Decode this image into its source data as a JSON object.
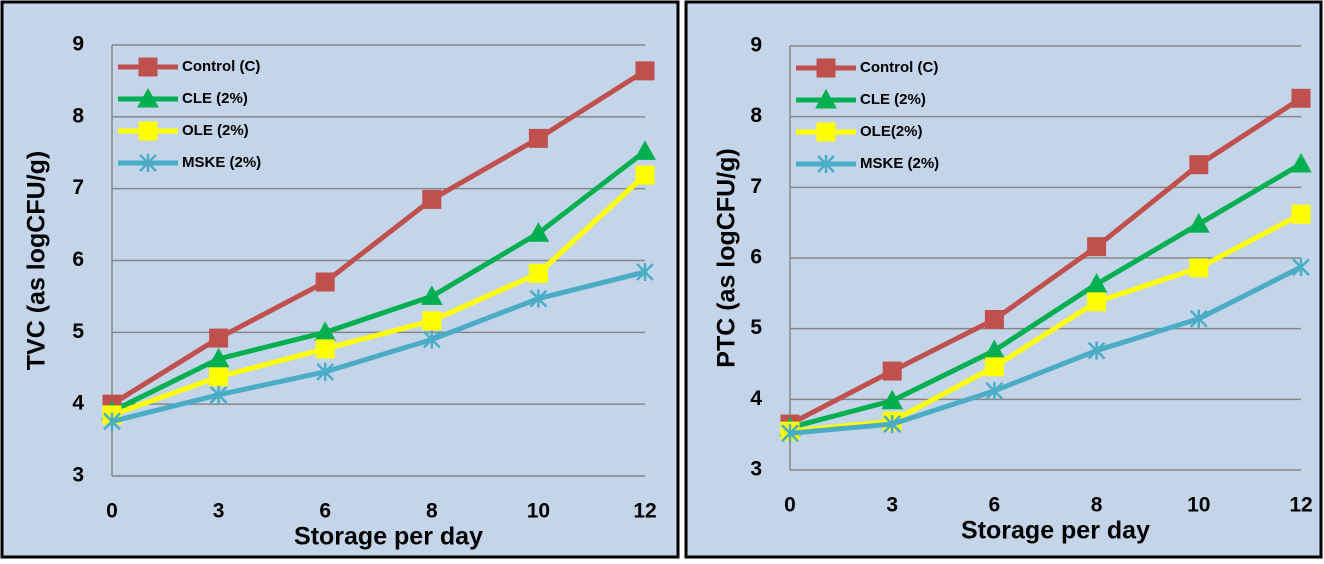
{
  "chart_data": [
    {
      "type": "line",
      "x_label": "Storage per day",
      "y_label": "TVC (as logCFU/g)",
      "categories": [
        "0",
        "3",
        "6",
        "8",
        "10",
        "12"
      ],
      "ylim": [
        3,
        9
      ],
      "yticks": [
        3,
        4,
        5,
        6,
        7,
        8,
        9
      ],
      "grid": true,
      "legend": "upper left",
      "series": [
        {
          "name": "Control (C)",
          "color": "#c0504d",
          "marker": "square",
          "values": [
            4.0,
            4.92,
            5.7,
            6.85,
            7.7,
            8.64
          ]
        },
        {
          "name": "CLE (2%)",
          "color": "#00b050",
          "marker": "triangle",
          "values": [
            3.9,
            4.63,
            5.0,
            5.5,
            6.38,
            7.52
          ]
        },
        {
          "name": "OLE (2%)",
          "color": "#ffff00",
          "marker": "square",
          "values": [
            3.85,
            4.38,
            4.77,
            5.16,
            5.82,
            7.19
          ]
        },
        {
          "name": "MSKE (2%)",
          "color": "#4bacc6",
          "marker": "star",
          "values": [
            3.76,
            4.13,
            4.45,
            4.9,
            5.47,
            5.84
          ]
        }
      ]
    },
    {
      "type": "line",
      "x_label": "Storage per day",
      "y_label": "PTC (as logCFU/g)",
      "categories": [
        "0",
        "3",
        "6",
        "8",
        "10",
        "12"
      ],
      "ylim": [
        3,
        9
      ],
      "yticks": [
        3,
        4,
        5,
        6,
        7,
        8,
        9
      ],
      "grid": true,
      "legend": "upper left",
      "series": [
        {
          "name": "Control (C)",
          "color": "#c0504d",
          "marker": "square",
          "values": [
            3.65,
            4.4,
            5.13,
            6.16,
            7.32,
            8.26
          ]
        },
        {
          "name": "CLE (2%)",
          "color": "#00b050",
          "marker": "triangle",
          "values": [
            3.6,
            3.98,
            4.69,
            5.63,
            6.48,
            7.33
          ]
        },
        {
          "name": "OLE(2%)",
          "color": "#ffff00",
          "marker": "square",
          "values": [
            3.55,
            3.69,
            4.46,
            5.38,
            5.86,
            6.62
          ]
        },
        {
          "name": "MSKE (2%)",
          "color": "#4bacc6",
          "marker": "star",
          "values": [
            3.52,
            3.65,
            4.12,
            4.69,
            5.14,
            5.87
          ]
        }
      ]
    }
  ]
}
